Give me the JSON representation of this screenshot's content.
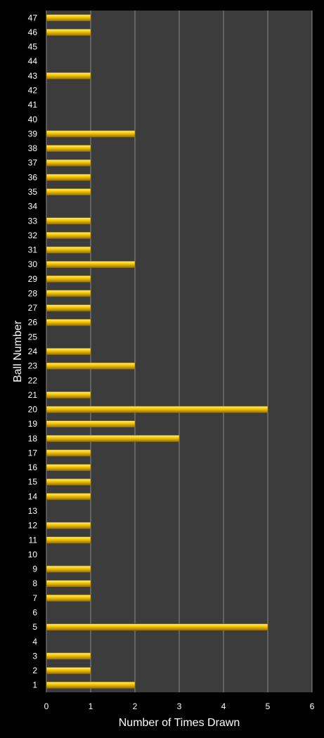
{
  "chart_data": {
    "type": "bar",
    "orientation": "horizontal",
    "title": "",
    "xlabel": "Number of Times Drawn",
    "ylabel": "Ball Number",
    "xlim": [
      0,
      6
    ],
    "xticks": [
      "0",
      "1",
      "2",
      "3",
      "4",
      "5",
      "6"
    ],
    "grid": true,
    "legend": "none",
    "categories": [
      "1",
      "2",
      "3",
      "4",
      "5",
      "6",
      "7",
      "8",
      "9",
      "10",
      "11",
      "12",
      "13",
      "14",
      "15",
      "16",
      "17",
      "18",
      "19",
      "20",
      "21",
      "22",
      "23",
      "24",
      "25",
      "26",
      "27",
      "28",
      "29",
      "30",
      "31",
      "32",
      "33",
      "34",
      "35",
      "36",
      "37",
      "38",
      "39",
      "40",
      "41",
      "42",
      "43",
      "44",
      "45",
      "46",
      "47"
    ],
    "values": [
      2,
      1,
      1,
      0,
      5,
      0,
      1,
      1,
      1,
      0,
      1,
      1,
      0,
      1,
      1,
      1,
      1,
      3,
      2,
      5,
      1,
      0,
      2,
      1,
      0,
      1,
      1,
      1,
      1,
      2,
      1,
      1,
      1,
      0,
      1,
      1,
      1,
      1,
      2,
      0,
      0,
      0,
      1,
      0,
      0,
      1,
      1
    ],
    "colors": {
      "background": "#000000",
      "plot_area": "#3c3c3c",
      "gridline": "#8a8a8a",
      "bar_light": "#fff27a",
      "bar_main": "#f2c200",
      "bar_dark": "#9a7400",
      "text": "#ffffff"
    }
  }
}
